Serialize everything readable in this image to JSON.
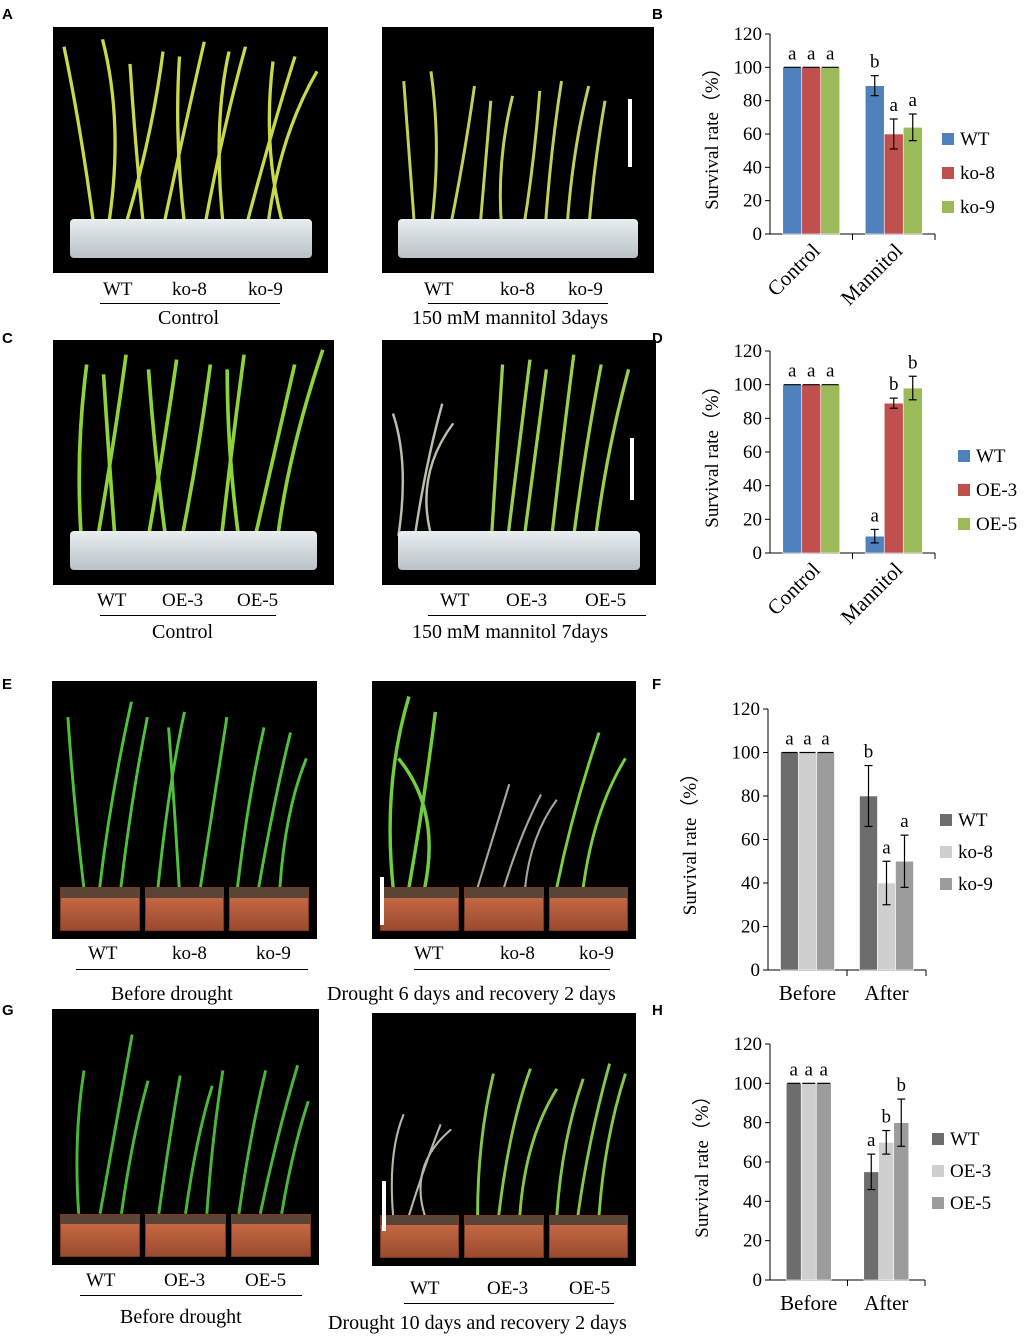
{
  "panels": {
    "A": {
      "letter": "A",
      "left_photo": {
        "labels": [
          "WT",
          "ko-8",
          "ko-9"
        ],
        "caption": "Control"
      },
      "right_photo": {
        "labels": [
          "WT",
          "ko-8",
          "ko-9"
        ],
        "caption": "150 mM mannitol 3days"
      }
    },
    "C": {
      "letter": "C",
      "left_photo": {
        "labels": [
          "WT",
          "OE-3",
          "OE-5"
        ],
        "caption": "Control"
      },
      "right_photo": {
        "labels": [
          "WT",
          "OE-3",
          "OE-5"
        ],
        "caption": "150 mM mannitol 7days"
      }
    },
    "E": {
      "letter": "E",
      "left_photo": {
        "labels": [
          "WT",
          "ko-8",
          "ko-9"
        ],
        "caption": "Before drought"
      },
      "right_photo": {
        "labels": [
          "WT",
          "ko-8",
          "ko-9"
        ],
        "caption": "Drought 6 days and recovery 2 days"
      }
    },
    "G": {
      "letter": "G",
      "left_photo": {
        "labels": [
          "WT",
          "OE-3",
          "OE-5"
        ],
        "caption": "Before drought"
      },
      "right_photo": {
        "labels": [
          "WT",
          "OE-3",
          "OE-5"
        ],
        "caption": "Drought 10 days and recovery 2 days"
      }
    }
  },
  "chart_data": [
    {
      "panel": "B",
      "type": "bar",
      "ylabel": "Survival rate（%）",
      "ylim": [
        0,
        120
      ],
      "yticks": [
        0,
        20,
        40,
        60,
        80,
        100,
        120
      ],
      "categories": [
        "Control",
        "Mannitol"
      ],
      "xtick_rotated": true,
      "series": [
        {
          "name": "WT",
          "color": "#4f81bd",
          "values": [
            100,
            89
          ],
          "errors": [
            0,
            6
          ],
          "letters": [
            "a",
            "b"
          ]
        },
        {
          "name": "ko-8",
          "color": "#c0504d",
          "values": [
            100,
            60
          ],
          "errors": [
            0,
            9
          ],
          "letters": [
            "a",
            "a"
          ]
        },
        {
          "name": "ko-9",
          "color": "#9bbb59",
          "values": [
            100,
            64
          ],
          "errors": [
            0,
            8
          ],
          "letters": [
            "a",
            "a"
          ]
        }
      ]
    },
    {
      "panel": "D",
      "type": "bar",
      "ylabel": "Survival rate（%）",
      "ylim": [
        0,
        120
      ],
      "yticks": [
        0,
        20,
        40,
        60,
        80,
        100,
        120
      ],
      "categories": [
        "Control",
        "Mannitol"
      ],
      "xtick_rotated": true,
      "series": [
        {
          "name": "WT",
          "color": "#4f81bd",
          "values": [
            100,
            10
          ],
          "errors": [
            0,
            4
          ],
          "letters": [
            "a",
            "a"
          ]
        },
        {
          "name": "OE-3",
          "color": "#c0504d",
          "values": [
            100,
            89
          ],
          "errors": [
            0,
            3
          ],
          "letters": [
            "a",
            "b"
          ]
        },
        {
          "name": "OE-5",
          "color": "#9bbb59",
          "values": [
            100,
            98
          ],
          "errors": [
            0,
            7
          ],
          "letters": [
            "a",
            "b"
          ]
        }
      ]
    },
    {
      "panel": "F",
      "type": "bar",
      "ylabel": "Survival rate（%）",
      "ylim": [
        0,
        120
      ],
      "yticks": [
        0,
        20,
        40,
        60,
        80,
        100,
        120
      ],
      "categories": [
        "Before",
        "After"
      ],
      "xtick_rotated": false,
      "series": [
        {
          "name": "WT",
          "color": "#6d6d6d",
          "values": [
            100,
            80
          ],
          "errors": [
            0,
            14
          ],
          "letters": [
            "a",
            "b"
          ]
        },
        {
          "name": "ko-8",
          "color": "#cfcfcf",
          "values": [
            100,
            40
          ],
          "errors": [
            0,
            10
          ],
          "letters": [
            "a",
            "a"
          ]
        },
        {
          "name": "ko-9",
          "color": "#9c9c9c",
          "values": [
            100,
            50
          ],
          "errors": [
            0,
            12
          ],
          "letters": [
            "a",
            "a"
          ]
        }
      ]
    },
    {
      "panel": "H",
      "type": "bar",
      "ylabel": "Survival rate（%）",
      "ylim": [
        0,
        120
      ],
      "yticks": [
        0,
        20,
        40,
        60,
        80,
        100,
        120
      ],
      "categories": [
        "Before",
        "After"
      ],
      "xtick_rotated": false,
      "series": [
        {
          "name": "WT",
          "color": "#6d6d6d",
          "values": [
            100,
            55
          ],
          "errors": [
            0,
            9
          ],
          "letters": [
            "a",
            "a"
          ]
        },
        {
          "name": "OE-3",
          "color": "#cfcfcf",
          "values": [
            100,
            70
          ],
          "errors": [
            0,
            6
          ],
          "letters": [
            "a",
            "b"
          ]
        },
        {
          "name": "OE-5",
          "color": "#9c9c9c",
          "values": [
            100,
            80
          ],
          "errors": [
            0,
            12
          ],
          "letters": [
            "a",
            "b"
          ]
        }
      ]
    }
  ]
}
